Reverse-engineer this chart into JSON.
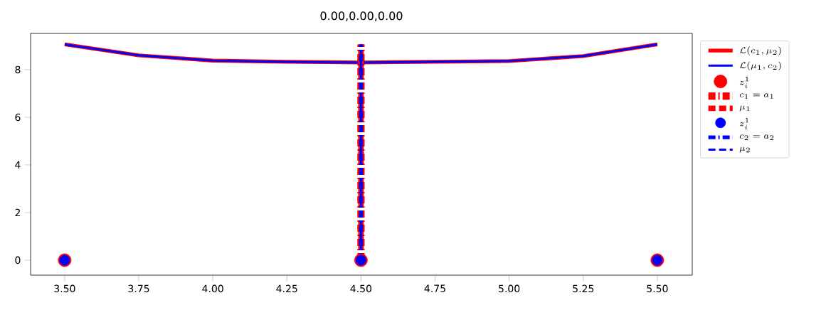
{
  "chart_data": {
    "type": "line",
    "title": "0.00,0.00,0.00",
    "xlim": [
      3.385,
      5.618
    ],
    "ylim": [
      -0.63,
      9.52
    ],
    "xticks": [
      {
        "value": 3.5,
        "label": "3.50"
      },
      {
        "value": 3.75,
        "label": "3.75"
      },
      {
        "value": 4.0,
        "label": "4.00"
      },
      {
        "value": 4.25,
        "label": "4.25"
      },
      {
        "value": 4.5,
        "label": "4.50"
      },
      {
        "value": 4.75,
        "label": "4.75"
      },
      {
        "value": 5.0,
        "label": "5.00"
      },
      {
        "value": 5.25,
        "label": "5.25"
      },
      {
        "value": 5.5,
        "label": "5.50"
      }
    ],
    "yticks": [
      0,
      2,
      4,
      6,
      8
    ],
    "legend": "right",
    "grid": false,
    "series": [
      {
        "name": "\\mathcal{L}(c_1,\\mu_2)",
        "color": "#ff0000",
        "line_style": "solid",
        "marker": "none",
        "x": [
          3.5,
          3.75,
          4.0,
          4.25,
          4.5,
          4.75,
          5.0,
          5.25,
          5.5
        ],
        "values": [
          9.06,
          8.6,
          8.38,
          8.33,
          8.3,
          8.33,
          8.36,
          8.57,
          9.06
        ]
      },
      {
        "name": "\\mathcal{L}(\\mu_1,c_2)",
        "color": "#0000ff",
        "line_style": "solid",
        "marker": "none",
        "x": [
          3.5,
          3.75,
          4.0,
          4.25,
          4.5,
          4.75,
          5.0,
          5.25,
          5.5
        ],
        "values": [
          9.06,
          8.6,
          8.38,
          8.33,
          8.3,
          8.33,
          8.36,
          8.57,
          9.06
        ]
      },
      {
        "name": "z_i^1",
        "type": "scatter",
        "color": "#ff0000",
        "marker": "circle",
        "x": [
          3.5,
          4.5,
          5.5
        ],
        "values": [
          0,
          0,
          0
        ]
      },
      {
        "name": "c_1=a_1",
        "color": "#ff0000",
        "line_style": "dashdot",
        "marker": "none",
        "x": [
          4.5,
          4.5
        ],
        "values": [
          0,
          9.06
        ]
      },
      {
        "name": "\\mu_1",
        "color": "#ff0000",
        "line_style": "dashed",
        "marker": "none",
        "x": [
          4.5,
          4.5
        ],
        "values": [
          0,
          9.06
        ]
      },
      {
        "name": "z_i^1",
        "type": "scatter",
        "color": "#0000ff",
        "marker": "circle",
        "x": [
          3.5,
          4.5,
          5.5
        ],
        "values": [
          0,
          0,
          0
        ]
      },
      {
        "name": "c_2=a_2",
        "color": "#0000ff",
        "line_style": "dashdot",
        "marker": "none",
        "x": [
          4.5,
          4.5
        ],
        "values": [
          0,
          9.06
        ]
      },
      {
        "name": "\\mu_2",
        "color": "#0000ff",
        "line_style": "dashed",
        "marker": "none",
        "x": [
          4.5,
          4.5
        ],
        "values": [
          0,
          9.06
        ]
      }
    ]
  }
}
